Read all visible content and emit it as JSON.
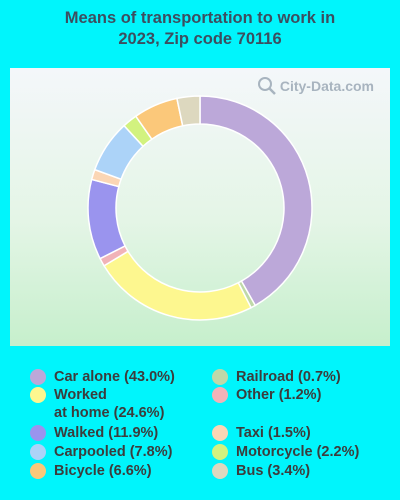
{
  "chart_data": {
    "type": "pie",
    "title_lines": [
      "Means of transportation to work in",
      "2023, Zip code 70116"
    ],
    "watermark": "City-Data.com",
    "donut": true,
    "slices": [
      {
        "label": "Car alone (43.0%)",
        "value": 43.0,
        "color": "#bca8d9"
      },
      {
        "label": "Railroad (0.7%)",
        "value": 0.7,
        "color": "#bfd8a8"
      },
      {
        "label": "Worked\nat home (24.6%)",
        "value": 24.6,
        "color": "#fdf78f"
      },
      {
        "label": "Other (1.2%)",
        "value": 1.2,
        "color": "#f1b3b8"
      },
      {
        "label": "Walked (11.9%)",
        "value": 11.9,
        "color": "#9a94ee"
      },
      {
        "label": "Taxi (1.5%)",
        "value": 1.5,
        "color": "#fbd6b5"
      },
      {
        "label": "Carpooled (7.8%)",
        "value": 7.8,
        "color": "#acd3f8"
      },
      {
        "label": "Motorcycle (2.2%)",
        "value": 2.2,
        "color": "#d2f27f"
      },
      {
        "label": "Bicycle (6.6%)",
        "value": 6.6,
        "color": "#fbc87a"
      },
      {
        "label": "Bus (3.4%)",
        "value": 3.4,
        "color": "#ddd8bf"
      }
    ],
    "legend_placement": "bottom"
  }
}
